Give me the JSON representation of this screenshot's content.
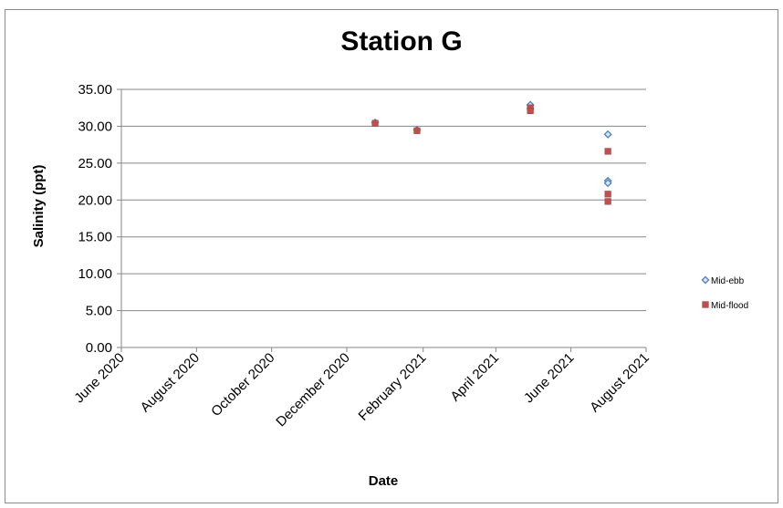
{
  "chart_data": {
    "type": "scatter",
    "title": "Station G",
    "xlabel": "Date",
    "ylabel": "Salinity (ppt)",
    "ylim": [
      0,
      35
    ],
    "yticks": [
      "0.00",
      "5.00",
      "10.00",
      "15.00",
      "20.00",
      "25.00",
      "30.00",
      "35.00"
    ],
    "xlim": [
      "2020-06-01",
      "2021-08-01"
    ],
    "xticks": [
      {
        "date": "2020-06-01",
        "label": "June 2020"
      },
      {
        "date": "2020-08-01",
        "label": "August 2020"
      },
      {
        "date": "2020-10-01",
        "label": "October 2020"
      },
      {
        "date": "2020-12-01",
        "label": "December 2020"
      },
      {
        "date": "2021-02-01",
        "label": "February 2021"
      },
      {
        "date": "2021-04-01",
        "label": "April 2021"
      },
      {
        "date": "2021-06-01",
        "label": "June 2021"
      },
      {
        "date": "2021-08-01",
        "label": "August 2021"
      }
    ],
    "grid": true,
    "legend": "right",
    "series": [
      {
        "name": "Mid-ebb",
        "marker": "diamond",
        "color": "#4f81bd",
        "points": [
          {
            "x": "2020-12-24",
            "y": 30.5
          },
          {
            "x": "2021-01-27",
            "y": 29.5
          },
          {
            "x": "2021-04-29",
            "y": 32.9
          },
          {
            "x": "2021-04-29",
            "y": 32.4
          },
          {
            "x": "2021-07-01",
            "y": 28.9
          },
          {
            "x": "2021-07-01",
            "y": 22.6
          },
          {
            "x": "2021-07-01",
            "y": 22.3
          }
        ]
      },
      {
        "name": "Mid-flood",
        "marker": "square",
        "color": "#c0504d",
        "points": [
          {
            "x": "2020-12-24",
            "y": 30.4
          },
          {
            "x": "2021-01-27",
            "y": 29.4
          },
          {
            "x": "2021-04-29",
            "y": 32.5
          },
          {
            "x": "2021-04-29",
            "y": 32.1
          },
          {
            "x": "2021-07-01",
            "y": 26.6
          },
          {
            "x": "2021-07-01",
            "y": 20.8
          },
          {
            "x": "2021-07-01",
            "y": 19.8
          }
        ]
      }
    ]
  }
}
